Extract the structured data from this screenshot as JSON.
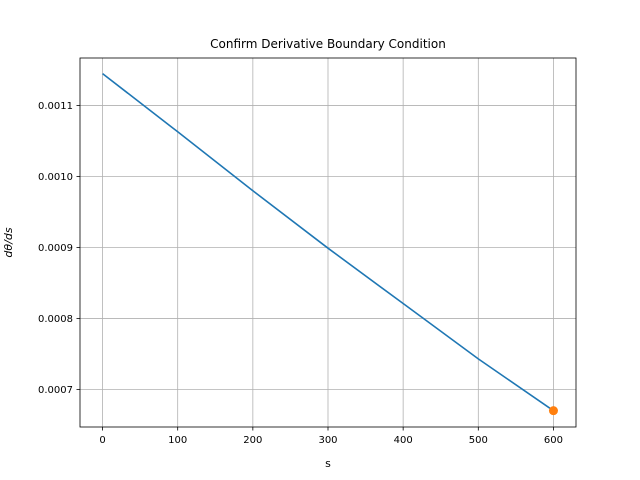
{
  "chart_data": {
    "type": "line",
    "title": "Confirm Derivative Boundary Condition",
    "xlabel": "s",
    "ylabel": "dθ/ds",
    "xlim": [
      -30,
      630
    ],
    "ylim": [
      0.000647,
      0.001167
    ],
    "grid": true,
    "xticks": [
      0,
      100,
      200,
      300,
      400,
      500,
      600
    ],
    "xtick_labels": [
      "0",
      "100",
      "200",
      "300",
      "400",
      "500",
      "600"
    ],
    "yticks": [
      0.0007,
      0.0008,
      0.0009,
      0.001,
      0.0011
    ],
    "ytick_labels": [
      "0.0007",
      "0.0008",
      "0.0009",
      "0.0010",
      "0.0011"
    ],
    "series": [
      {
        "color": "#1f77b4",
        "x": [
          0,
          100,
          200,
          300,
          400,
          500,
          600
        ],
        "y": [
          0.001145,
          0.001063,
          0.00098,
          0.000899,
          0.000821,
          0.000743,
          0.00067
        ]
      },
      {
        "color": "#ff7f0e",
        "marker": "circle",
        "x": [
          600
        ],
        "y": [
          0.00067
        ]
      }
    ]
  }
}
